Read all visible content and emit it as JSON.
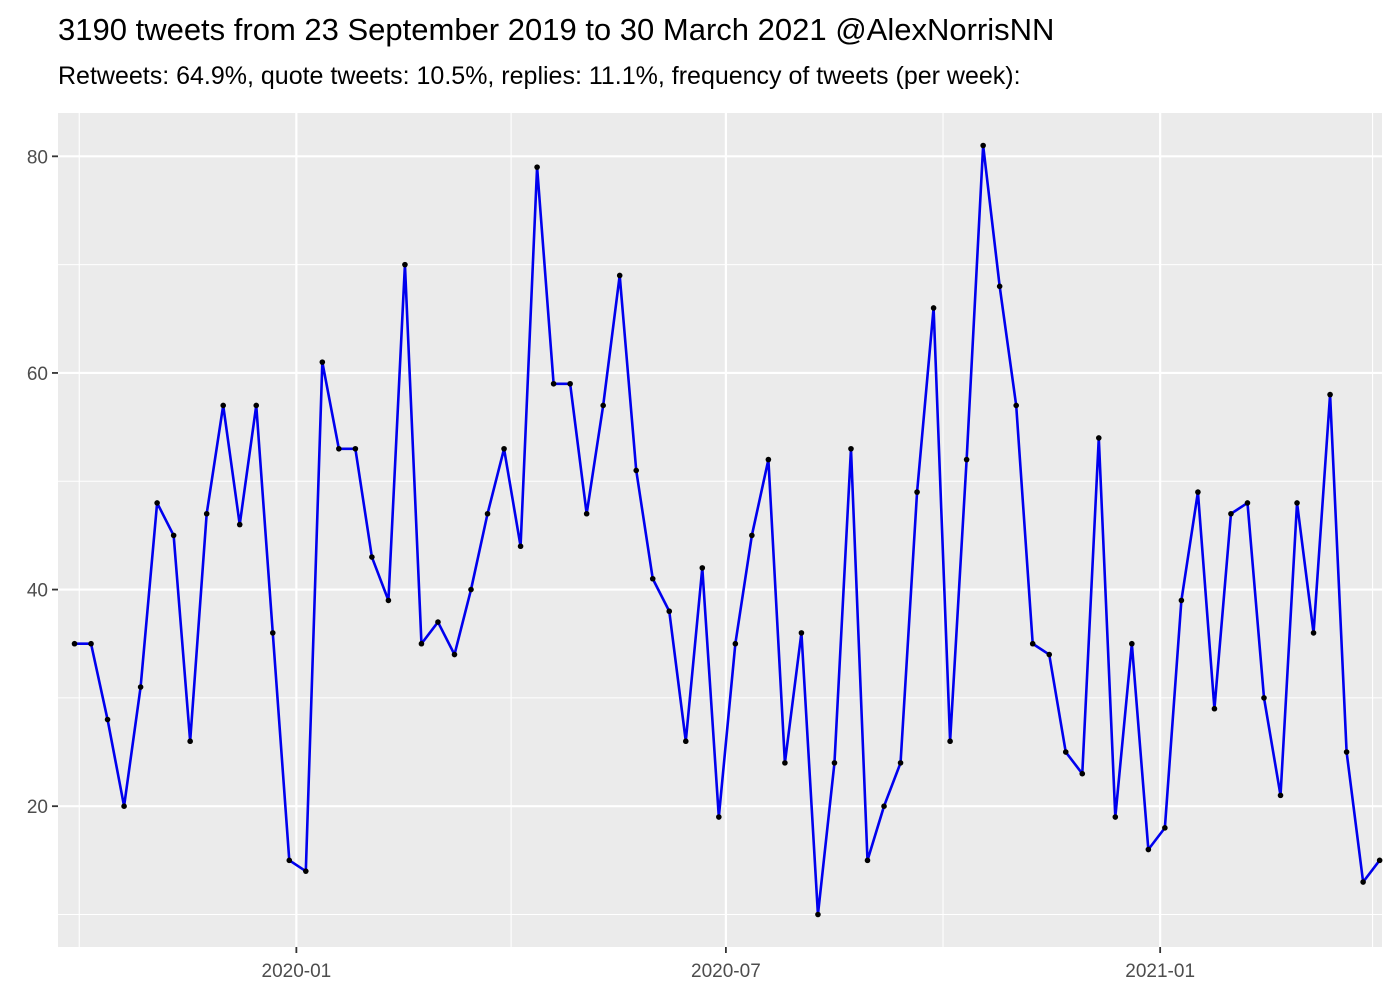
{
  "chart_data": {
    "type": "line",
    "title": "3190 tweets from 23 September 2019 to 30 March 2021 @AlexNorrisNN",
    "subtitle": "Retweets: 64.9%, quote tweets: 10.5%, replies: 11.1%, frequency of tweets (per week):",
    "xlabel": "",
    "ylabel": "",
    "x_scale": "date",
    "xlim": [
      "2019-09-22",
      "2021-04-05"
    ],
    "ylim": [
      7,
      84
    ],
    "grid": true,
    "legend": "none",
    "line_color": "#0000ee",
    "point_color": "#000000",
    "panel_color": "#ebebeb",
    "x_ticks": [
      {
        "date": "2020-01-01",
        "label": "2020-01"
      },
      {
        "date": "2020-07-01",
        "label": "2020-07"
      },
      {
        "date": "2021-01-01",
        "label": "2021-01"
      }
    ],
    "x_minor": [
      "2019-10-01",
      "2020-04-01",
      "2020-10-01",
      "2021-04-01"
    ],
    "y_ticks": [
      20,
      40,
      60,
      80
    ],
    "y_minor": [
      10,
      30,
      50,
      70
    ],
    "series": [
      {
        "x": [
          "2019-09-29",
          "2019-10-06",
          "2019-10-13",
          "2019-10-20",
          "2019-10-27",
          "2019-11-03",
          "2019-11-10",
          "2019-11-17",
          "2019-11-24",
          "2019-12-01",
          "2019-12-08",
          "2019-12-15",
          "2019-12-22",
          "2019-12-29",
          "2020-01-05",
          "2020-01-12",
          "2020-01-19",
          "2020-01-26",
          "2020-02-02",
          "2020-02-09",
          "2020-02-16",
          "2020-02-23",
          "2020-03-01",
          "2020-03-08",
          "2020-03-15",
          "2020-03-22",
          "2020-03-29",
          "2020-04-05",
          "2020-04-12",
          "2020-04-19",
          "2020-04-26",
          "2020-05-03",
          "2020-05-10",
          "2020-05-17",
          "2020-05-24",
          "2020-05-31",
          "2020-06-07",
          "2020-06-14",
          "2020-06-21",
          "2020-06-28",
          "2020-07-05",
          "2020-07-12",
          "2020-07-19",
          "2020-07-26",
          "2020-08-02",
          "2020-08-09",
          "2020-08-16",
          "2020-08-23",
          "2020-08-30",
          "2020-09-06",
          "2020-09-13",
          "2020-09-20",
          "2020-09-27",
          "2020-10-04",
          "2020-10-11",
          "2020-10-18",
          "2020-10-25",
          "2020-11-01",
          "2020-11-08",
          "2020-11-15",
          "2020-11-22",
          "2020-11-29",
          "2020-12-06",
          "2020-12-13",
          "2020-12-20",
          "2020-12-27",
          "2021-01-03",
          "2021-01-10",
          "2021-01-17",
          "2021-01-24",
          "2021-01-31",
          "2021-02-07",
          "2021-02-14",
          "2021-02-21",
          "2021-02-28",
          "2021-03-07",
          "2021-03-14",
          "2021-03-21",
          "2021-03-28",
          "2021-04-04"
        ],
        "values": [
          35,
          35,
          28,
          20,
          31,
          48,
          45,
          26,
          47,
          57,
          46,
          57,
          36,
          15,
          14,
          61,
          53,
          53,
          43,
          39,
          70,
          35,
          37,
          34,
          40,
          47,
          53,
          44,
          79,
          59,
          59,
          47,
          57,
          69,
          51,
          41,
          38,
          26,
          42,
          19,
          35,
          45,
          52,
          24,
          36,
          10,
          24,
          53,
          15,
          20,
          24,
          49,
          66,
          26,
          52,
          81,
          68,
          57,
          35,
          34,
          25,
          23,
          54,
          19,
          35,
          16,
          18,
          39,
          49,
          29,
          47,
          48,
          30,
          21,
          48,
          36,
          58,
          25,
          13,
          15
        ]
      }
    ]
  }
}
